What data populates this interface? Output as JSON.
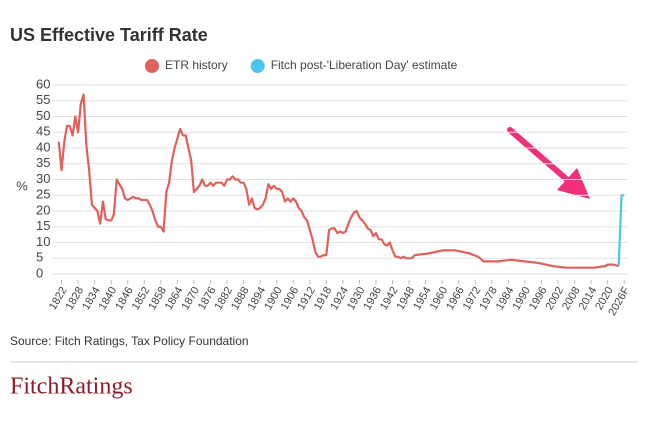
{
  "chart_data": {
    "type": "line",
    "title": "US Effective Tariff Rate",
    "y_label": "%",
    "source": "Source: Fitch Ratings, Tax Policy Foundation",
    "xlim": [
      1820,
      2027
    ],
    "ylim": [
      0,
      60
    ],
    "yticks": [
      0,
      5,
      10,
      15,
      20,
      25,
      30,
      35,
      40,
      45,
      50,
      55,
      60
    ],
    "xticks": [
      1822,
      1828,
      1834,
      1840,
      1846,
      1852,
      1858,
      1864,
      1870,
      1876,
      1882,
      1888,
      1894,
      1900,
      1906,
      1912,
      1918,
      1924,
      1930,
      1936,
      1942,
      1948,
      1954,
      1960,
      1966,
      1972,
      1978,
      1984,
      1990,
      1996,
      2002,
      2008,
      2014,
      2020,
      {
        "value": 2026,
        "label": "2026F"
      }
    ],
    "grid": true,
    "series": [
      {
        "name": "ETR history",
        "color": "#e0605c",
        "x": [
          1821,
          1822,
          1823,
          1824,
          1825,
          1826,
          1827,
          1828,
          1829,
          1830,
          1831,
          1832,
          1833,
          1834,
          1835,
          1836,
          1837,
          1838,
          1839,
          1840,
          1841,
          1842,
          1843,
          1844,
          1845,
          1846,
          1847,
          1848,
          1849,
          1850,
          1851,
          1852,
          1853,
          1854,
          1855,
          1856,
          1857,
          1858,
          1859,
          1860,
          1861,
          1862,
          1863,
          1864,
          1865,
          1866,
          1867,
          1868,
          1869,
          1870,
          1871,
          1872,
          1873,
          1874,
          1875,
          1876,
          1877,
          1878,
          1879,
          1880,
          1881,
          1882,
          1883,
          1884,
          1885,
          1886,
          1887,
          1888,
          1889,
          1890,
          1891,
          1892,
          1893,
          1894,
          1895,
          1896,
          1897,
          1898,
          1899,
          1900,
          1901,
          1902,
          1903,
          1904,
          1905,
          1906,
          1907,
          1908,
          1909,
          1910,
          1911,
          1912,
          1913,
          1914,
          1915,
          1916,
          1917,
          1918,
          1919,
          1920,
          1921,
          1922,
          1923,
          1924,
          1925,
          1926,
          1927,
          1928,
          1929,
          1930,
          1931,
          1932,
          1933,
          1934,
          1935,
          1936,
          1937,
          1938,
          1939,
          1940,
          1941,
          1942,
          1943,
          1944,
          1945,
          1946,
          1947,
          1948,
          1949,
          1950,
          1955,
          1960,
          1965,
          1970,
          1973,
          1975,
          1980,
          1985,
          1990,
          1995,
          2000,
          2005,
          2010,
          2015,
          2019,
          2020,
          2022,
          2024
        ],
        "values": [
          42,
          33,
          42,
          47,
          47,
          44,
          50,
          45,
          54,
          57,
          41,
          33,
          22,
          21,
          20,
          16,
          23,
          17.5,
          17,
          17,
          19,
          30,
          28.5,
          27,
          24,
          23.5,
          24,
          24.5,
          24,
          24,
          23.5,
          23.5,
          23.5,
          22,
          20,
          17,
          15,
          15,
          13.5,
          26,
          29,
          36,
          40,
          43,
          46,
          44,
          44,
          40,
          36,
          26,
          27,
          28,
          30,
          28,
          28,
          29,
          28,
          29,
          29,
          29,
          28,
          30,
          30,
          31,
          30,
          30,
          29,
          29,
          27,
          22,
          24,
          21,
          20.5,
          21,
          22,
          24,
          28.5,
          27,
          28,
          27,
          27,
          26,
          23,
          24,
          23,
          24,
          23,
          21,
          20,
          18,
          17,
          14,
          11,
          7,
          5.5,
          5.5,
          6,
          6,
          14,
          14.5,
          14.5,
          13,
          13.5,
          13,
          13.5,
          16,
          18,
          19.5,
          20,
          18,
          17,
          16,
          14.5,
          14,
          12,
          13,
          11,
          11,
          9.5,
          9,
          10,
          7.5,
          5.5,
          5.5,
          5,
          5.5,
          5,
          5,
          5,
          6,
          6.5,
          7.5,
          7.5,
          6.5,
          5.5,
          4,
          4,
          4.5,
          4,
          3.5,
          2.5,
          2,
          2,
          2,
          2.5,
          3,
          3,
          2.5
        ]
      },
      {
        "name": "Fitch post-'Liberation Day' estimate",
        "color": "#4dc4ea",
        "x": [
          2024,
          2025,
          2026
        ],
        "values": [
          2.5,
          25,
          25
        ]
      }
    ]
  },
  "logo": "FitchRatings"
}
